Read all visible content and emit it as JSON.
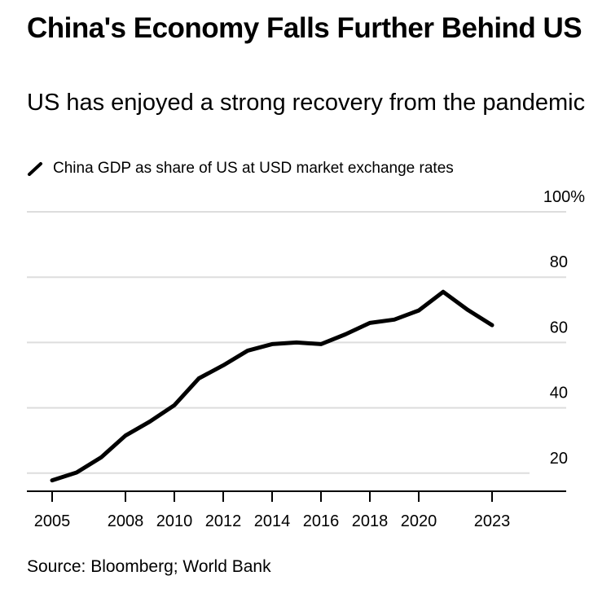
{
  "chart_data": {
    "type": "line",
    "title": "China's Economy Falls Further Behind US",
    "subtitle": "US has enjoyed a strong recovery from the pandemic",
    "legend": [
      "China GDP as share of US at USD market exchange rates"
    ],
    "x": [
      2005,
      2006,
      2007,
      2008,
      2009,
      2010,
      2011,
      2012,
      2013,
      2014,
      2015,
      2016,
      2017,
      2018,
      2019,
      2020,
      2021,
      2022,
      2023
    ],
    "series": [
      {
        "name": "China GDP as share of US at USD market exchange rates",
        "values": [
          17.8,
          20.2,
          24.8,
          31.5,
          35.8,
          40.8,
          49.0,
          53.0,
          57.5,
          59.5,
          60.0,
          59.5,
          62.5,
          66.0,
          67.0,
          69.8,
          75.5,
          70.0,
          65.3
        ]
      }
    ],
    "x_ticks": [
      "2005",
      "2008",
      "2010",
      "2012",
      "2014",
      "2016",
      "2018",
      "2020",
      "2023"
    ],
    "y_ticks": [
      "20",
      "40",
      "60",
      "80",
      "100%"
    ],
    "ylim": [
      0,
      100
    ],
    "xlabel": "",
    "ylabel": "",
    "grid": true,
    "y_axis_side": "right",
    "source": "Source: Bloomberg; World Bank",
    "line_color": "#000000",
    "grid_color": "#dddddd"
  }
}
